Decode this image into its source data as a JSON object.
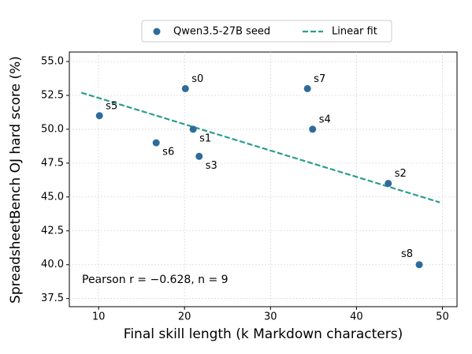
{
  "chart_data": {
    "type": "scatter",
    "xlabel": "Final skill length (k Markdown characters)",
    "ylabel": "SpreadsheetBench OJ hard score (%)",
    "annotation": "Pearson r = −0.628, n = 9",
    "xlim": [
      6.6,
      51.7
    ],
    "ylim": [
      36.9,
      55.7
    ],
    "xticks": [
      10,
      20,
      30,
      40,
      50
    ],
    "yticks": [
      {
        "value": 37.5,
        "label": "37.5"
      },
      {
        "value": 40,
        "label": "40.0"
      },
      {
        "value": 42.5,
        "label": "42.5"
      },
      {
        "value": 45,
        "label": "45.0"
      },
      {
        "value": 47.5,
        "label": "47.5"
      },
      {
        "value": 50,
        "label": "50.0"
      },
      {
        "value": 52.5,
        "label": "52.5"
      },
      {
        "value": 55,
        "label": "55.0"
      }
    ],
    "grid": true,
    "legend": "top",
    "series": [
      {
        "name": "Qwen3.5-27B seed",
        "color": "#2f6b9a",
        "x": [
          20.1,
          21.0,
          43.7,
          21.7,
          34.9,
          10.1,
          16.7,
          34.3,
          47.3
        ],
        "values": [
          53.0,
          50.0,
          46.0,
          48.0,
          50.0,
          51.0,
          49.0,
          53.0,
          40.0
        ],
        "point_labels": [
          "s0",
          "s1",
          "s2",
          "s3",
          "s4",
          "s5",
          "s6",
          "s7",
          "s8"
        ]
      }
    ],
    "fit": {
      "name": "Linear fit",
      "color": "#2a9d8f",
      "x": [
        8,
        49.7
      ],
      "values": [
        52.7,
        44.6
      ]
    }
  }
}
